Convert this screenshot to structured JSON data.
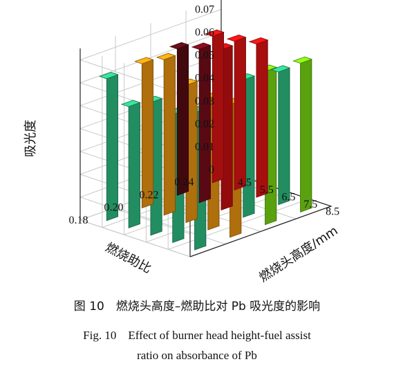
{
  "chart_data": {
    "type": "bar3d",
    "zlabel": "吸光度",
    "xlabel": "燃烧助比",
    "ylabel": "燃烧头高度/mm",
    "x_ticks": [
      "0.18",
      "0.20",
      "0.22",
      "0.24"
    ],
    "y_ticks": [
      "4.5",
      "5.5",
      "6.5",
      "7.5",
      "8.5"
    ],
    "z_ticks": [
      "0",
      "0.01",
      "0.02",
      "0.03",
      "0.04",
      "0.05",
      "0.06",
      "0.07"
    ],
    "zlim": [
      0,
      0.075
    ],
    "grid": true,
    "series": [
      {
        "x": "0.18",
        "colors": [
          "#2fc485",
          "#2fc485",
          "#2fc485",
          "#2fc485",
          "#2fc485"
        ],
        "values": [
          0.062,
          0.053,
          0.058,
          0.056,
          0.06
        ]
      },
      {
        "x": "0.20",
        "colors": [
          "#f29a10",
          "#f29a10",
          "#f29a10",
          "#f29a10",
          "#f29a10"
        ],
        "values": [
          0.063,
          0.068,
          0.06,
          0.057,
          0.058
        ]
      },
      {
        "x": "0.22",
        "colors": [
          "#5a0d14",
          "#7a0c1b",
          "#cc0f12",
          "#2fc485",
          "#7de013"
        ],
        "values": [
          0.064,
          0.067,
          0.07,
          0.06,
          0.067
        ]
      },
      {
        "x": "0.24",
        "colors": [
          "#e31414",
          "#e81313",
          "#e81313",
          "#2fc485",
          "#7de013"
        ],
        "values": [
          0.064,
          0.065,
          0.067,
          0.058,
          0.065
        ]
      }
    ]
  },
  "caption": {
    "cn": "图 10　燃烧头高度–燃助比对 Pb 吸光度的影响",
    "en_line1": "Fig. 10　Effect of burner head height-fuel assist",
    "en_line2": "ratio on absorbance of Pb"
  }
}
